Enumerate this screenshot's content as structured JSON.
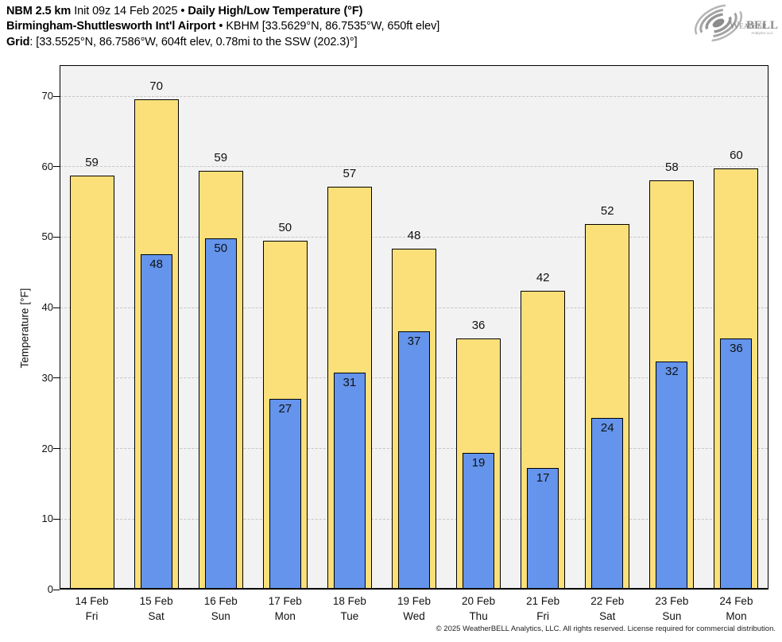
{
  "header": {
    "model": "NBM 2.5 km",
    "init": "Init 09z 14 Feb 2025",
    "sep1": "•",
    "product": "Daily High/Low Temperature (°F)",
    "station_name": "Birmingham-Shuttlesworth Int'l Airport",
    "sep2": "•",
    "station_info": "KBHM [33.5629°N, 86.7535°W, 650ft elev]",
    "grid_label": "Grid",
    "grid_info": ": [33.5525°N, 86.7586°W, 604ft elev, 0.78mi to the SSW (202.3)°]"
  },
  "logo": {
    "weather": "Weather",
    "bell": "BELL",
    "sub": "Analytics LLC"
  },
  "footer": {
    "copyright": "© 2025 WeatherBELL Analytics, LLC. All rights reserved. License required for commercial distribution."
  },
  "chart_data": {
    "type": "bar",
    "title": "NBM 2.5 km Daily High/Low Temperature (°F) — Birmingham-Shuttlesworth Int'l Airport (KBHM)",
    "xlabel": "",
    "ylabel": "Temperature [°F]",
    "ylim": [
      0,
      74.4
    ],
    "yticks": [
      0,
      10,
      20,
      30,
      40,
      50,
      60,
      70
    ],
    "grid": "horizontal-dashed",
    "legend_position": "none",
    "plot_bg": "#f2f2f2",
    "grid_color": "#c6c6c6",
    "categories": [
      {
        "date": "14 Feb",
        "day": "Fri"
      },
      {
        "date": "15 Feb",
        "day": "Sat"
      },
      {
        "date": "16 Feb",
        "day": "Sun"
      },
      {
        "date": "17 Feb",
        "day": "Mon"
      },
      {
        "date": "18 Feb",
        "day": "Tue"
      },
      {
        "date": "19 Feb",
        "day": "Wed"
      },
      {
        "date": "20 Feb",
        "day": "Thu"
      },
      {
        "date": "21 Feb",
        "day": "Fri"
      },
      {
        "date": "22 Feb",
        "day": "Sat"
      },
      {
        "date": "23 Feb",
        "day": "Sun"
      },
      {
        "date": "24 Feb",
        "day": "Mon"
      }
    ],
    "series": [
      {
        "name": "High",
        "color": "#fbe07a",
        "labels": [
          59,
          70,
          59,
          50,
          57,
          48,
          36,
          42,
          52,
          58,
          60
        ],
        "values": [
          58.7,
          69.6,
          59.4,
          49.5,
          57.2,
          48.4,
          35.6,
          42.4,
          51.9,
          58.0,
          59.8
        ]
      },
      {
        "name": "Low",
        "color": "#6494ec",
        "labels": [
          null,
          48,
          50,
          27,
          31,
          37,
          19,
          17,
          24,
          32,
          36
        ],
        "values": [
          null,
          47.6,
          49.8,
          27.1,
          30.8,
          36.6,
          19.4,
          17.2,
          24.3,
          32.3,
          35.6
        ]
      }
    ]
  }
}
